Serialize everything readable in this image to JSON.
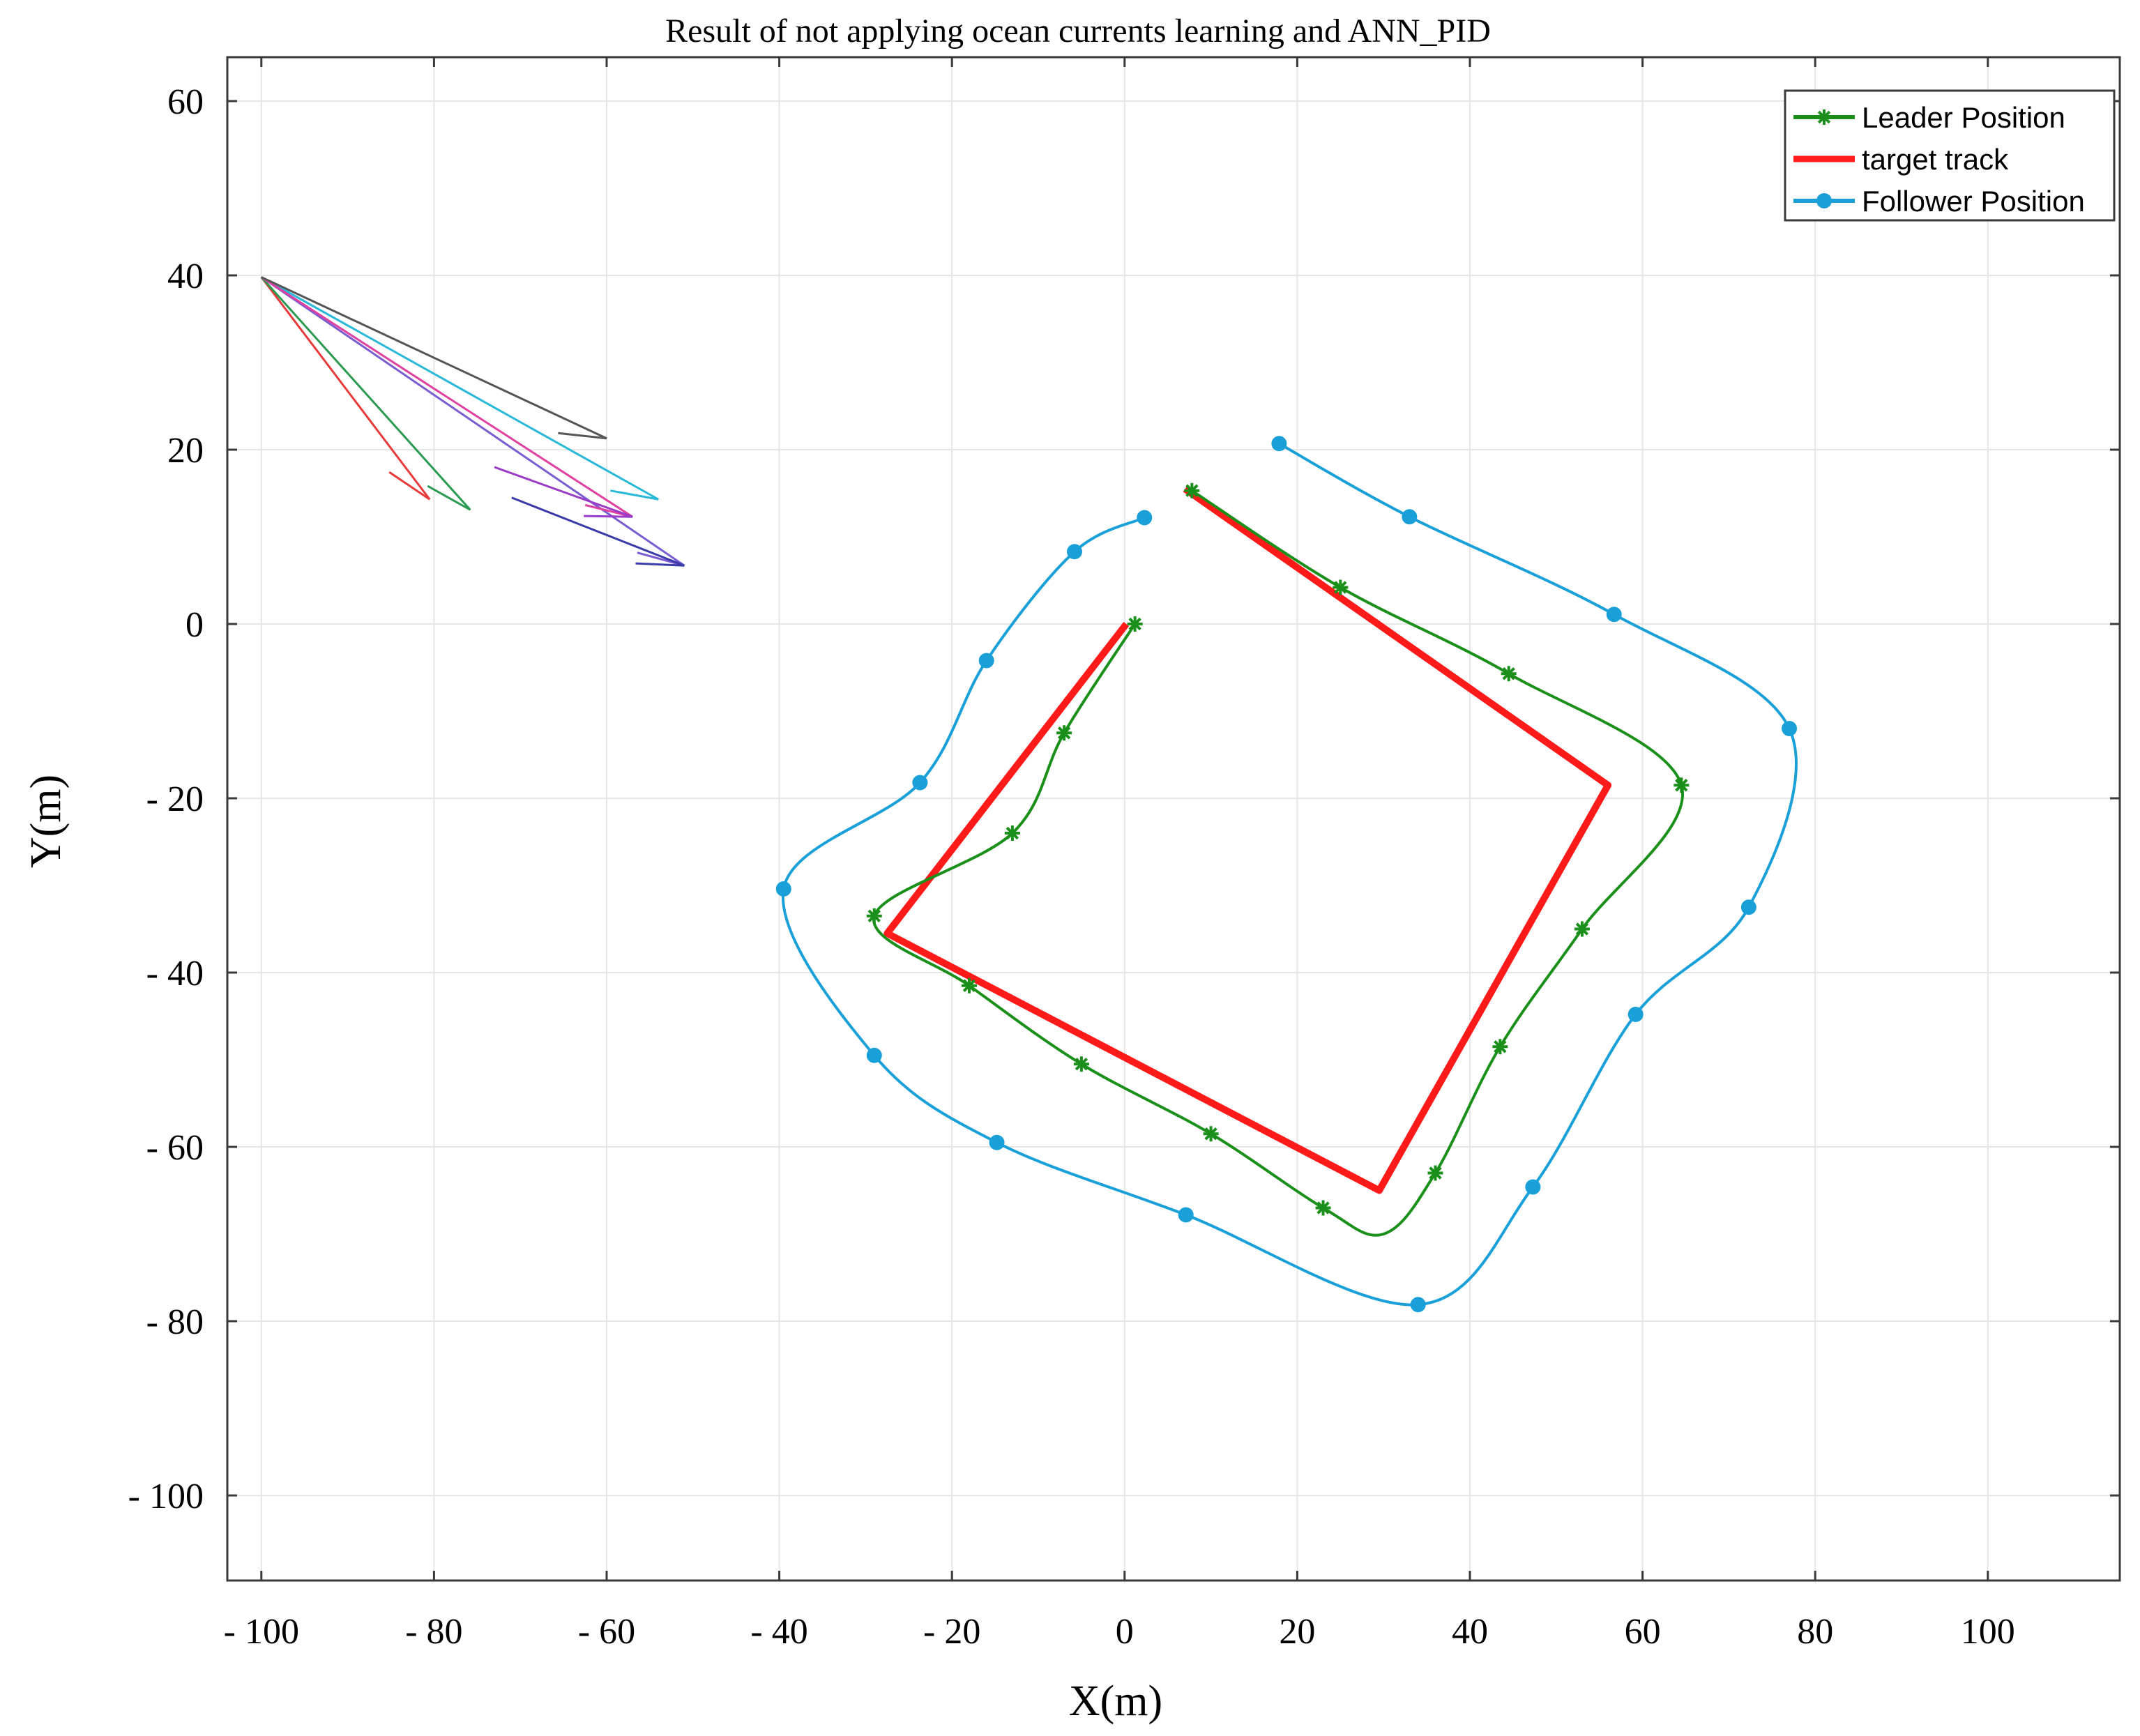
{
  "chart_data": {
    "type": "line",
    "title": "Result of not applying ocean currents  learning and ANN_PID",
    "xlabel": "X(m)",
    "ylabel": "Y(m)",
    "xlim": [
      -105,
      117
    ],
    "ylim": [
      -110,
      62
    ],
    "grid": true,
    "xticks": [
      -100,
      -80,
      -60,
      -40,
      -20,
      0,
      20,
      40,
      60,
      80,
      100
    ],
    "yticks": [
      60,
      40,
      20,
      0,
      -20,
      -40,
      -60,
      -80,
      -100
    ],
    "xtick_labels": [
      "- 100",
      "- 80",
      "- 60",
      "- 40",
      "- 20",
      "0",
      "20",
      "40",
      "60",
      "80",
      "100"
    ],
    "ytick_labels": [
      "60",
      "40",
      "20",
      "0",
      "- 20",
      "- 40",
      "- 60",
      "- 80",
      "- 100"
    ],
    "legend": {
      "position": "top-right",
      "entries": [
        {
          "label": "Leader Position",
          "color": "#1a8f1a",
          "marker": "asterisk"
        },
        {
          "label": "target track",
          "color": "#ff1a1a",
          "marker": "none"
        },
        {
          "label": "Follower Position",
          "color": "#1aa0d8",
          "marker": "circle"
        }
      ]
    },
    "series": [
      {
        "name": "target track",
        "color": "#ff1a1a",
        "x": [
          0.2,
          -27.5,
          29.5,
          56,
          7
        ],
        "y": [
          0,
          -35.5,
          -65,
          -18.5,
          15.5
        ]
      },
      {
        "name": "Leader Position",
        "color": "#1a8f1a",
        "curve": "smooth",
        "x": [
          1.2,
          -7,
          -13,
          -29,
          -18,
          -5,
          10,
          23,
          30,
          36,
          43.5,
          53,
          64.5,
          44.5,
          25,
          7.8
        ],
        "y": [
          0,
          -12.5,
          -24,
          -33.5,
          -41.5,
          -50.5,
          -58.5,
          -67,
          -70,
          -63,
          -48.5,
          -35,
          -18.5,
          -5.7,
          4.2,
          15.3
        ],
        "markers_at": [
          1.2,
          -7,
          -13,
          -29,
          -18,
          -5,
          10,
          23,
          36,
          43.5,
          53,
          64.5,
          44.5,
          25,
          7.8
        ],
        "marker_y": [
          0,
          -12.5,
          -24,
          -33.5,
          -41.5,
          -50.5,
          -58.5,
          -67,
          -63,
          -48.5,
          -35,
          -18.5,
          -5.7,
          4.2,
          15.3
        ]
      },
      {
        "name": "Follower Position",
        "color": "#1aa0d8",
        "curve": "smooth",
        "x": [
          2.3,
          -5.8,
          -16,
          -23.7,
          -39.5,
          -29,
          -14.8,
          7.1,
          34,
          47.3,
          59.2,
          72.3,
          77,
          56.7,
          33,
          17.9
        ],
        "y": [
          12.2,
          8.3,
          -4.2,
          -18.2,
          -30.4,
          -49.5,
          -59.5,
          -67.8,
          -78.1,
          -64.6,
          -44.8,
          -32.5,
          -12,
          1.1,
          12.3,
          20.7
        ]
      }
    ],
    "annotations": {
      "description_excluded": true,
      "arrow_glyph_colors": [
        "#e83a3a",
        "#2a9a50",
        "#7a5cd0",
        "#28b8d8",
        "#e040a0",
        "#555555",
        "#3a3aaa",
        "#9a3ac8"
      ],
      "arrow_glyphs_data": [
        {
          "from": [
            -100,
            39.8
          ],
          "to": [
            -80.5,
            14.3
          ],
          "color": "#e83a3a"
        },
        {
          "from": [
            -100,
            39.8
          ],
          "to": [
            -75.8,
            13.1
          ],
          "color": "#2a9a50"
        },
        {
          "from": [
            -100,
            39.8
          ],
          "to": [
            -51,
            6.7
          ],
          "color": "#7a5cd0"
        },
        {
          "from": [
            -100,
            39.8
          ],
          "to": [
            -54,
            14.3
          ],
          "color": "#28b8d8"
        },
        {
          "from": [
            -100,
            39.8
          ],
          "to": [
            -57,
            12.3
          ],
          "color": "#e040a0"
        },
        {
          "from": [
            -100,
            39.8
          ],
          "to": [
            -60,
            21.3
          ],
          "color": "#555555"
        },
        {
          "from": [
            -71,
            14.5
          ],
          "to": [
            -51,
            6.7
          ],
          "color": "#3a3aaa"
        },
        {
          "from": [
            -73,
            18
          ],
          "to": [
            -57,
            12.3
          ],
          "color": "#9a3ac8"
        }
      ]
    }
  }
}
